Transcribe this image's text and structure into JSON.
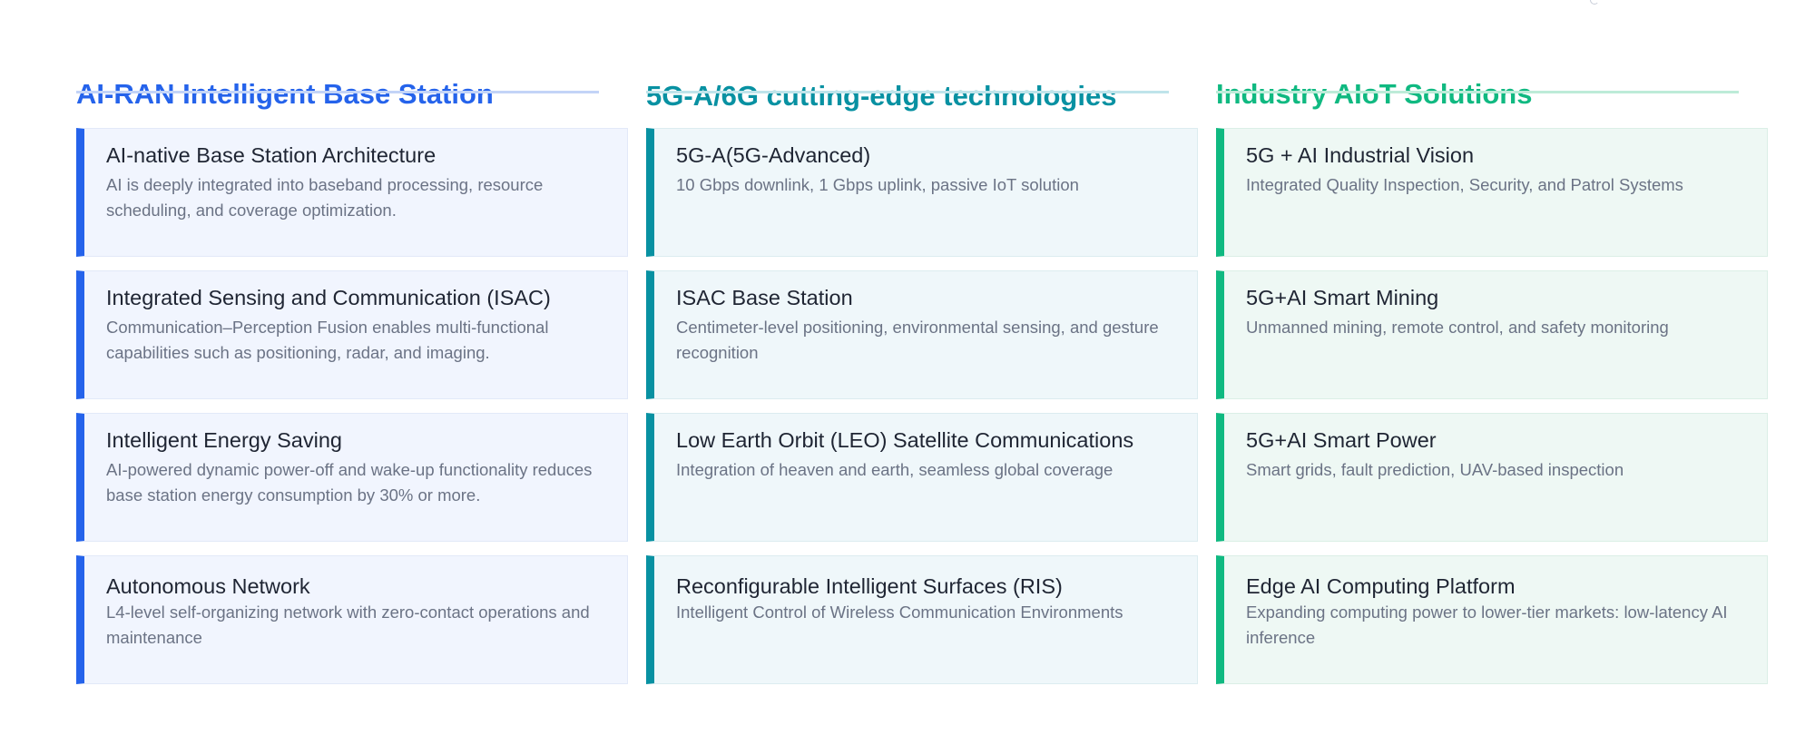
{
  "columns": [
    {
      "heading": "AI-RAN Intelligent Base Station",
      "accent_color": "#2563eb",
      "underline_color": "#c3d4f7",
      "card_bg": "#f1f5fe",
      "card_border": "#e2e9f8",
      "cards": [
        {
          "title": "AI-native Base Station Architecture",
          "description": "AI is deeply integrated into baseband processing, resource scheduling, and coverage optimization."
        },
        {
          "title": "Integrated Sensing and Communication (ISAC)",
          "description": "Communication–Perception Fusion enables multi-functional capabilities such as positioning, radar, and imaging."
        },
        {
          "title": "Intelligent Energy Saving",
          "description": "AI-powered dynamic power-off and wake-up functionality reduces base station energy consumption by 30% or more."
        },
        {
          "title": "Autonomous Network",
          "description": "L4-level self-organizing network with zero-contact operations and maintenance"
        }
      ]
    },
    {
      "heading": "5G-A/6G cutting-edge technologies",
      "accent_color": "#0891a2",
      "underline_color": "#bfe4ea",
      "card_bg": "#eff7fa",
      "card_border": "#dcecf0",
      "cards": [
        {
          "title": "5G-A(5G-Advanced)",
          "description": "10 Gbps downlink, 1 Gbps uplink, passive IoT solution"
        },
        {
          "title": "ISAC Base Station",
          "description": "Centimeter-level positioning, environmental sensing, and gesture recognition"
        },
        {
          "title": "Low Earth Orbit (LEO) Satellite Communications",
          "description": "Integration of heaven and earth, seamless global coverage"
        },
        {
          "title": "Reconfigurable Intelligent Surfaces (RIS)",
          "description": "Intelligent Control of Wireless Communication Environments"
        }
      ]
    },
    {
      "heading": "Industry AIoT Solutions",
      "accent_color": "#10b981",
      "underline_color": "#bdebd8",
      "card_bg": "#eef8f4",
      "card_border": "#dbefe6",
      "cards": [
        {
          "title": "5G + AI Industrial Vision",
          "description": "Integrated Quality Inspection, Security, and Patrol Systems"
        },
        {
          "title": "5G+AI Smart Mining",
          "description": "Unmanned mining, remote control, and safety monitoring"
        },
        {
          "title": "5G+AI Smart Power",
          "description": "Smart grids, fault prediction, UAV-based inspection"
        },
        {
          "title": "Edge AI Computing Platform",
          "description": "Expanding computing power to lower-tier markets: low-latency AI inference"
        }
      ]
    }
  ]
}
